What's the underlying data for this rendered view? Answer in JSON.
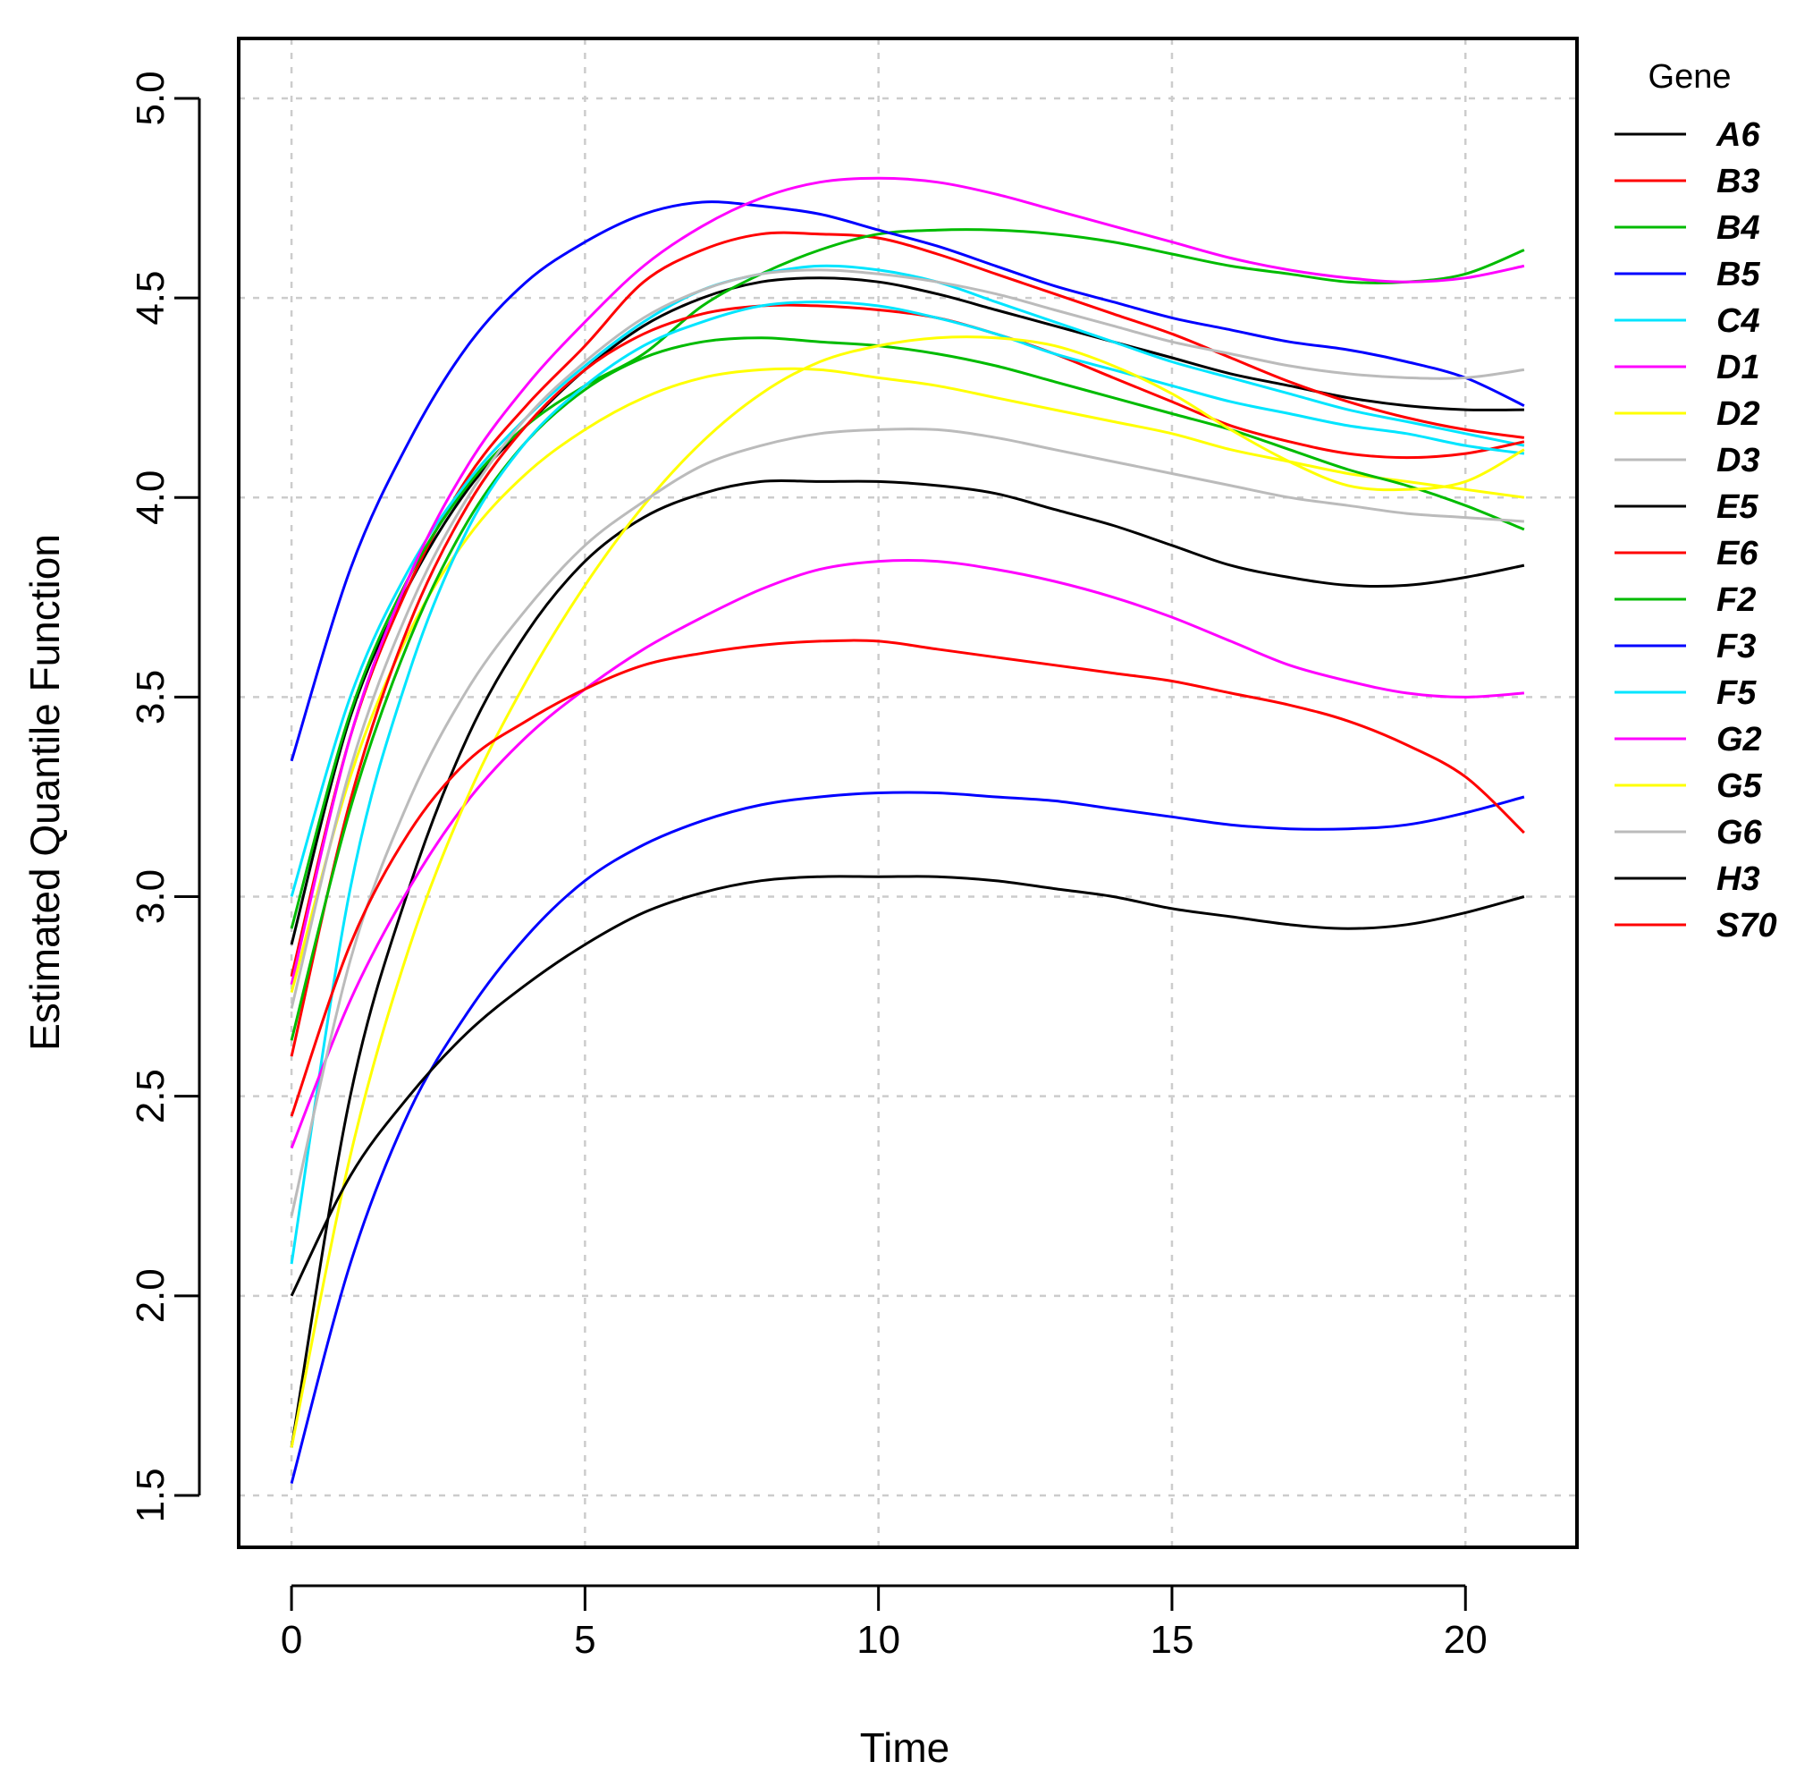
{
  "chart_data": {
    "type": "line",
    "title": "",
    "xlabel": "Time",
    "ylabel": "Estimated Quantile Function",
    "xlim": [
      -0.9,
      21.9
    ],
    "ylim": [
      1.37,
      5.15
    ],
    "xticks": [
      0,
      5,
      10,
      15,
      20
    ],
    "yticks": [
      1.5,
      2.0,
      2.5,
      3.0,
      3.5,
      4.0,
      4.5,
      5.0
    ],
    "xtick_labels": [
      "0",
      "5",
      "10",
      "15",
      "20"
    ],
    "ytick_labels": [
      "1.5",
      "2.0",
      "2.5",
      "3.0",
      "3.5",
      "4.0",
      "4.5",
      "5.0"
    ],
    "grid": true,
    "legend_title": "Gene",
    "legend_position": "right",
    "x": [
      0,
      1,
      2,
      3,
      4,
      5,
      6,
      7,
      8,
      9,
      10,
      11,
      12,
      13,
      14,
      15,
      16,
      17,
      18,
      19,
      20,
      21
    ],
    "series": [
      {
        "name": "A6",
        "color": "#000000",
        "values": [
          2.88,
          3.45,
          3.78,
          4.02,
          4.18,
          4.32,
          4.43,
          4.5,
          4.54,
          4.55,
          4.54,
          4.51,
          4.47,
          4.43,
          4.39,
          4.35,
          4.31,
          4.28,
          4.25,
          4.23,
          4.22,
          4.22
        ]
      },
      {
        "name": "B3",
        "color": "#ff0000",
        "values": [
          2.8,
          3.4,
          3.78,
          4.05,
          4.23,
          4.38,
          4.54,
          4.62,
          4.66,
          4.66,
          4.65,
          4.61,
          4.56,
          4.51,
          4.46,
          4.41,
          4.35,
          4.29,
          4.24,
          4.2,
          4.17,
          4.15
        ]
      },
      {
        "name": "B4",
        "color": "#00bb00",
        "values": [
          2.92,
          3.46,
          3.8,
          4.03,
          4.18,
          4.28,
          4.36,
          4.48,
          4.56,
          4.62,
          4.66,
          4.67,
          4.67,
          4.66,
          4.64,
          4.61,
          4.58,
          4.56,
          4.54,
          4.54,
          4.56,
          4.62
        ]
      },
      {
        "name": "B5",
        "color": "#0000ff",
        "values": [
          3.34,
          3.82,
          4.14,
          4.38,
          4.54,
          4.64,
          4.71,
          4.74,
          4.73,
          4.71,
          4.67,
          4.63,
          4.58,
          4.53,
          4.49,
          4.45,
          4.42,
          4.39,
          4.37,
          4.34,
          4.3,
          4.23
        ]
      },
      {
        "name": "C4",
        "color": "#00e5ff",
        "values": [
          3.0,
          3.5,
          3.82,
          4.04,
          4.2,
          4.33,
          4.44,
          4.52,
          4.56,
          4.58,
          4.57,
          4.54,
          4.49,
          4.44,
          4.39,
          4.34,
          4.3,
          4.26,
          4.22,
          4.19,
          4.16,
          4.13
        ]
      },
      {
        "name": "D1",
        "color": "#ff00ff",
        "values": [
          2.78,
          3.4,
          3.8,
          4.08,
          4.28,
          4.44,
          4.58,
          4.68,
          4.75,
          4.79,
          4.8,
          4.79,
          4.76,
          4.72,
          4.68,
          4.64,
          4.6,
          4.57,
          4.55,
          4.54,
          4.55,
          4.58
        ]
      },
      {
        "name": "D2",
        "color": "#ffff00",
        "values": [
          2.76,
          3.3,
          3.66,
          3.9,
          4.06,
          4.17,
          4.25,
          4.3,
          4.32,
          4.32,
          4.3,
          4.28,
          4.25,
          4.22,
          4.19,
          4.16,
          4.12,
          4.09,
          4.06,
          4.04,
          4.02,
          4.0
        ]
      },
      {
        "name": "D3",
        "color": "#bbbbbb",
        "values": [
          2.72,
          3.32,
          3.72,
          4.0,
          4.2,
          4.34,
          4.45,
          4.52,
          4.56,
          4.57,
          4.56,
          4.54,
          4.51,
          4.47,
          4.43,
          4.39,
          4.36,
          4.33,
          4.31,
          4.3,
          4.3,
          4.32
        ]
      },
      {
        "name": "E5",
        "color": "#000000",
        "values": [
          1.62,
          2.5,
          3.02,
          3.4,
          3.66,
          3.84,
          3.95,
          4.01,
          4.04,
          4.04,
          4.04,
          4.03,
          4.01,
          3.97,
          3.93,
          3.88,
          3.83,
          3.8,
          3.78,
          3.78,
          3.8,
          3.83
        ]
      },
      {
        "name": "E6",
        "color": "#ff0000",
        "values": [
          2.6,
          3.24,
          3.68,
          3.98,
          4.18,
          4.32,
          4.41,
          4.46,
          4.48,
          4.48,
          4.47,
          4.45,
          4.41,
          4.36,
          4.3,
          4.24,
          4.18,
          4.14,
          4.11,
          4.1,
          4.11,
          4.14
        ]
      },
      {
        "name": "F2",
        "color": "#00bb00",
        "values": [
          2.64,
          3.22,
          3.64,
          3.94,
          4.14,
          4.27,
          4.35,
          4.39,
          4.4,
          4.39,
          4.38,
          4.36,
          4.33,
          4.29,
          4.25,
          4.21,
          4.17,
          4.12,
          4.07,
          4.03,
          3.98,
          3.92
        ]
      },
      {
        "name": "F3",
        "color": "#0000ff",
        "values": [
          1.53,
          2.08,
          2.46,
          2.71,
          2.9,
          3.04,
          3.13,
          3.19,
          3.23,
          3.25,
          3.26,
          3.26,
          3.25,
          3.24,
          3.22,
          3.2,
          3.18,
          3.17,
          3.17,
          3.18,
          3.21,
          3.25
        ]
      },
      {
        "name": "F5",
        "color": "#00e5ff",
        "values": [
          2.08,
          3.02,
          3.56,
          3.92,
          4.14,
          4.28,
          4.38,
          4.44,
          4.48,
          4.49,
          4.48,
          4.45,
          4.41,
          4.36,
          4.32,
          4.28,
          4.24,
          4.21,
          4.18,
          4.16,
          4.13,
          4.11
        ]
      },
      {
        "name": "G2",
        "color": "#ff00ff",
        "values": [
          2.37,
          2.74,
          3.02,
          3.24,
          3.4,
          3.52,
          3.62,
          3.7,
          3.77,
          3.82,
          3.84,
          3.84,
          3.82,
          3.79,
          3.75,
          3.7,
          3.64,
          3.58,
          3.54,
          3.51,
          3.5,
          3.51
        ]
      },
      {
        "name": "G5",
        "color": "#ffff00",
        "values": [
          1.62,
          2.35,
          2.87,
          3.25,
          3.54,
          3.78,
          3.98,
          4.14,
          4.26,
          4.34,
          4.38,
          4.4,
          4.4,
          4.38,
          4.33,
          4.26,
          4.17,
          4.09,
          4.03,
          4.02,
          4.04,
          4.12
        ]
      },
      {
        "name": "G6",
        "color": "#bbbbbb",
        "values": [
          2.2,
          2.84,
          3.24,
          3.52,
          3.72,
          3.88,
          3.99,
          4.08,
          4.13,
          4.16,
          4.17,
          4.17,
          4.15,
          4.12,
          4.09,
          4.06,
          4.03,
          4.0,
          3.98,
          3.96,
          3.95,
          3.94
        ]
      },
      {
        "name": "H3",
        "color": "#000000",
        "values": [
          2.0,
          2.3,
          2.5,
          2.66,
          2.78,
          2.88,
          2.96,
          3.01,
          3.04,
          3.05,
          3.05,
          3.05,
          3.04,
          3.02,
          3.0,
          2.97,
          2.95,
          2.93,
          2.92,
          2.93,
          2.96,
          3.0
        ]
      },
      {
        "name": "S70",
        "color": "#ff0000",
        "values": [
          2.45,
          2.88,
          3.16,
          3.34,
          3.44,
          3.52,
          3.58,
          3.61,
          3.63,
          3.64,
          3.64,
          3.62,
          3.6,
          3.58,
          3.56,
          3.54,
          3.51,
          3.48,
          3.44,
          3.38,
          3.3,
          3.16
        ]
      }
    ]
  }
}
